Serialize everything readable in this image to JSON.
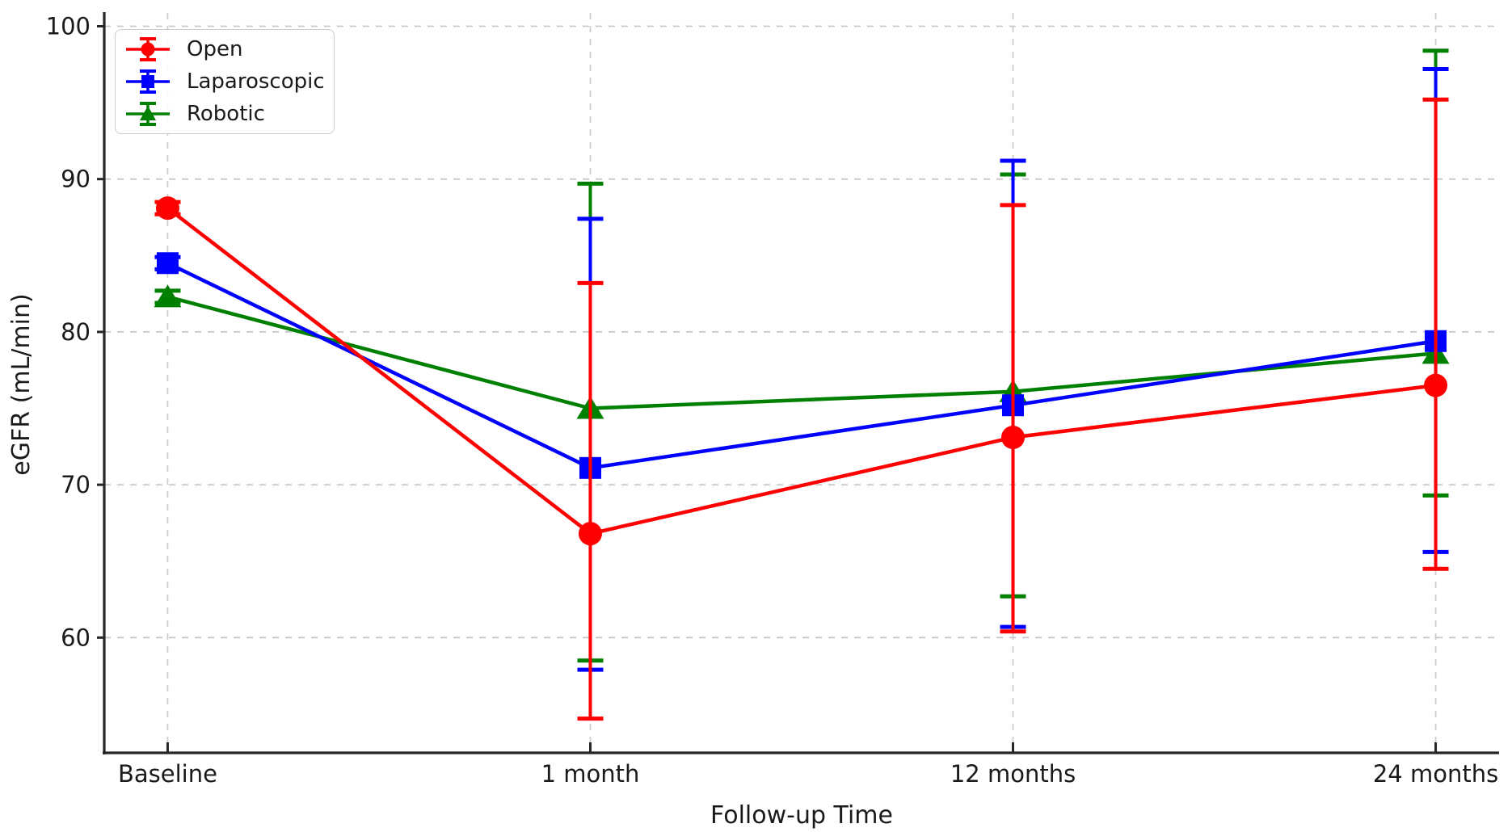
{
  "chart_data": {
    "type": "line",
    "title": "",
    "xlabel": "Follow-up Time",
    "ylabel": "eGFR (mL/min)",
    "categories": [
      "Baseline",
      "1 month",
      "12 months",
      "24 months"
    ],
    "yticks": [
      60,
      70,
      80,
      90,
      100
    ],
    "ylim": [
      52.46,
      100.66
    ],
    "xlim": [
      -0.15,
      3.15
    ],
    "grid": {
      "horizontal": true,
      "vertical": true,
      "style": "dashed",
      "color": "#c8c8c8"
    },
    "legend": {
      "position": "upper-left"
    },
    "series": [
      {
        "name": "Open",
        "color": "#ff0000",
        "marker": "circle",
        "values": [
          88.1,
          66.8,
          73.1,
          76.5
        ],
        "err_lo": [
          87.7,
          54.7,
          60.4,
          64.5
        ],
        "err_hi": [
          88.5,
          83.2,
          88.3,
          95.2
        ]
      },
      {
        "name": "Laparoscopic",
        "color": "#0000ff",
        "marker": "square",
        "values": [
          84.5,
          71.1,
          75.2,
          79.4
        ],
        "err_lo": [
          84.1,
          57.9,
          60.7,
          65.6
        ],
        "err_hi": [
          84.9,
          87.4,
          91.2,
          97.2
        ]
      },
      {
        "name": "Robotic",
        "color": "#008000",
        "marker": "triangle",
        "values": [
          82.3,
          75.0,
          76.1,
          78.6
        ],
        "err_lo": [
          81.9,
          58.5,
          62.7,
          69.3
        ],
        "err_hi": [
          82.7,
          89.7,
          90.3,
          98.4
        ]
      }
    ],
    "draw_order": [
      2,
      1,
      0
    ],
    "axis_color": "#262626",
    "text_color": "#1a1a1a"
  }
}
